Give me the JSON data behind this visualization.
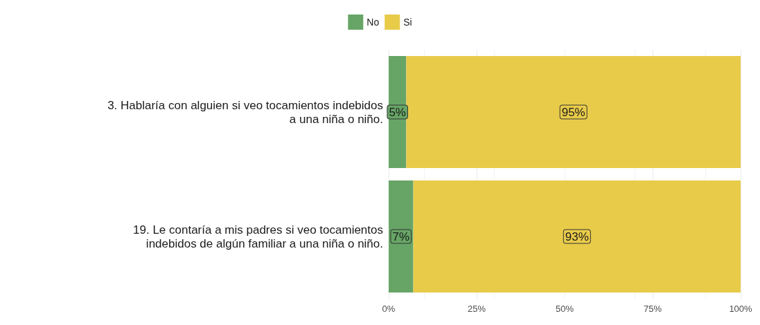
{
  "chart_data": {
    "type": "bar",
    "orientation": "horizontal",
    "stacked": true,
    "categories": [
      "3. Hablaría con alguien si veo tocamientos indebidos\na una niña o niño.",
      "19. Le contaría a mis padres si veo tocamientos\nindebidos de algún familiar a una niña o niño."
    ],
    "series": [
      {
        "name": "No",
        "color": "#67a567",
        "values": [
          5,
          7
        ],
        "value_labels": [
          "5%",
          "7%"
        ]
      },
      {
        "name": "Si",
        "color": "#e9cb4a",
        "values": [
          95,
          93
        ],
        "value_labels": [
          "95%",
          "93%"
        ]
      }
    ],
    "xlim": [
      0,
      100
    ],
    "xticks": [
      {
        "value": 0,
        "label": "0%"
      },
      {
        "value": 25,
        "label": "25%"
      },
      {
        "value": 50,
        "label": "50%"
      },
      {
        "value": 75,
        "label": "75%"
      },
      {
        "value": 100,
        "label": "100%"
      }
    ],
    "grid": "x",
    "legend": "top"
  }
}
